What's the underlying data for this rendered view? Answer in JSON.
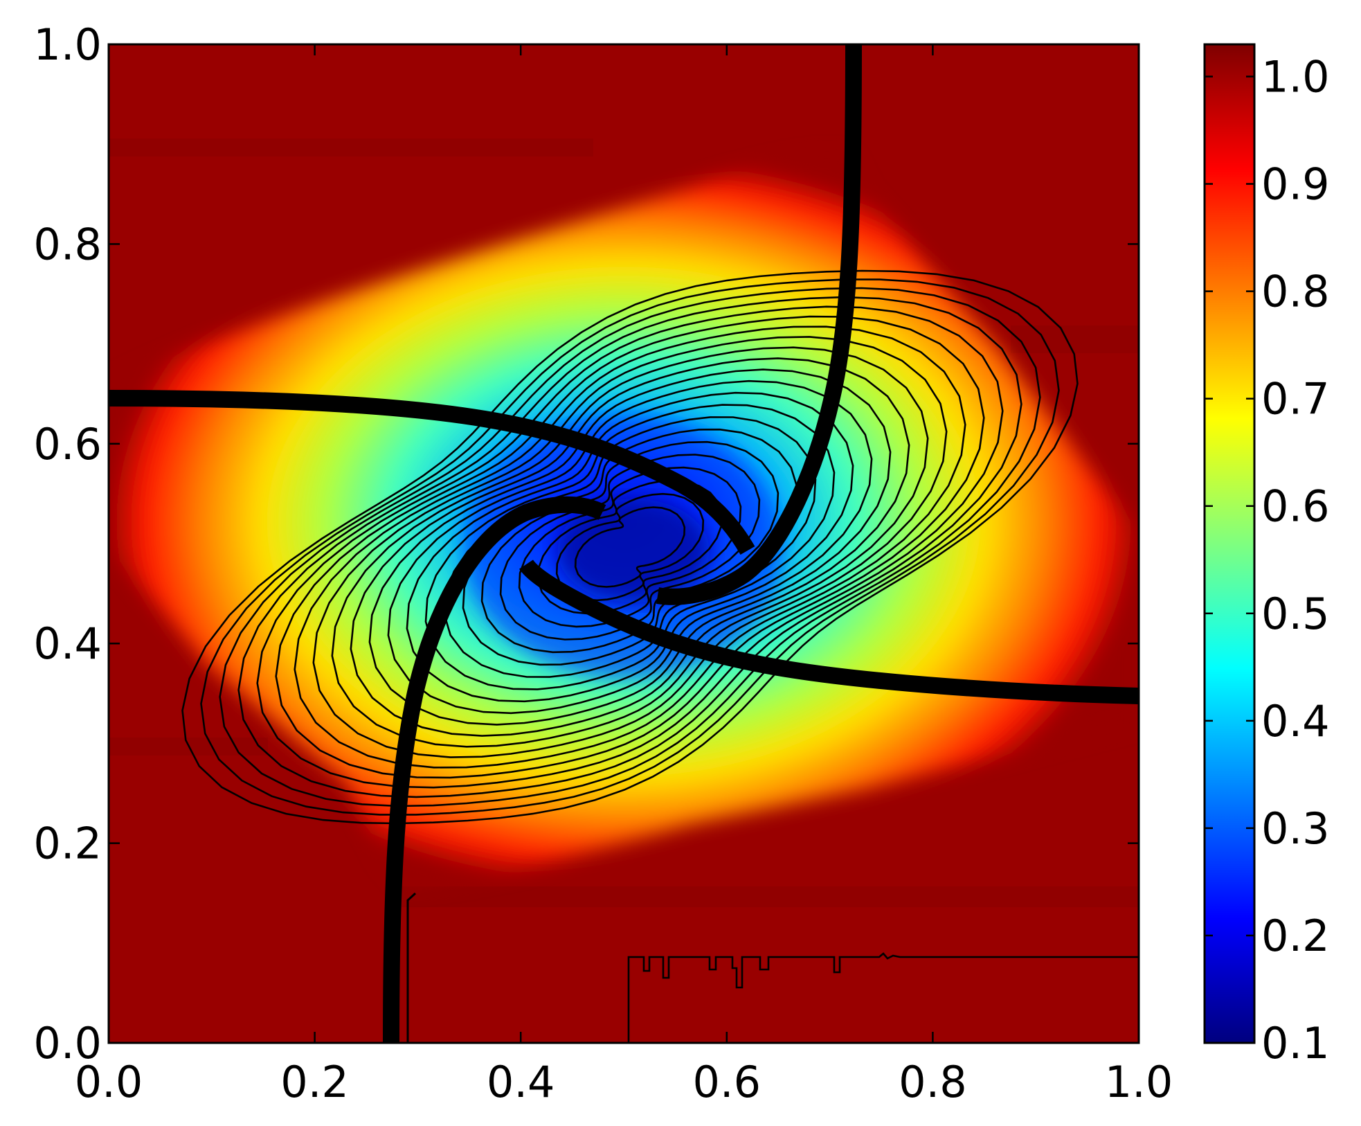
{
  "chart_data": {
    "type": "heatmap",
    "title": "",
    "xlabel": "",
    "ylabel": "",
    "xlim": [
      0.0,
      1.0
    ],
    "ylim": [
      0.0,
      1.0
    ],
    "x_ticks": [
      "0.0",
      "0.2",
      "0.4",
      "0.6",
      "0.8",
      "1.0"
    ],
    "y_ticks": [
      "0.0",
      "0.2",
      "0.4",
      "0.6",
      "0.8",
      "1.0"
    ],
    "colorbar": {
      "range": [
        0.1,
        1.03
      ],
      "ticks": [
        "0.1",
        "0.2",
        "0.3",
        "0.4",
        "0.5",
        "0.6",
        "0.7",
        "0.8",
        "0.9",
        "1.0"
      ],
      "tick_values": [
        0.1,
        0.2,
        0.3,
        0.4,
        0.5,
        0.6,
        0.7,
        0.8,
        0.9,
        1.0
      ],
      "colormap": "jet",
      "colors": [
        "#00007f",
        "#0000ff",
        "#007fff",
        "#00ffff",
        "#7fff7f",
        "#ffff00",
        "#ff7f00",
        "#ff0000",
        "#7f0000"
      ]
    },
    "background_value": 1.0,
    "min_value": 0.1,
    "contour_lines": true,
    "grid": false
  }
}
